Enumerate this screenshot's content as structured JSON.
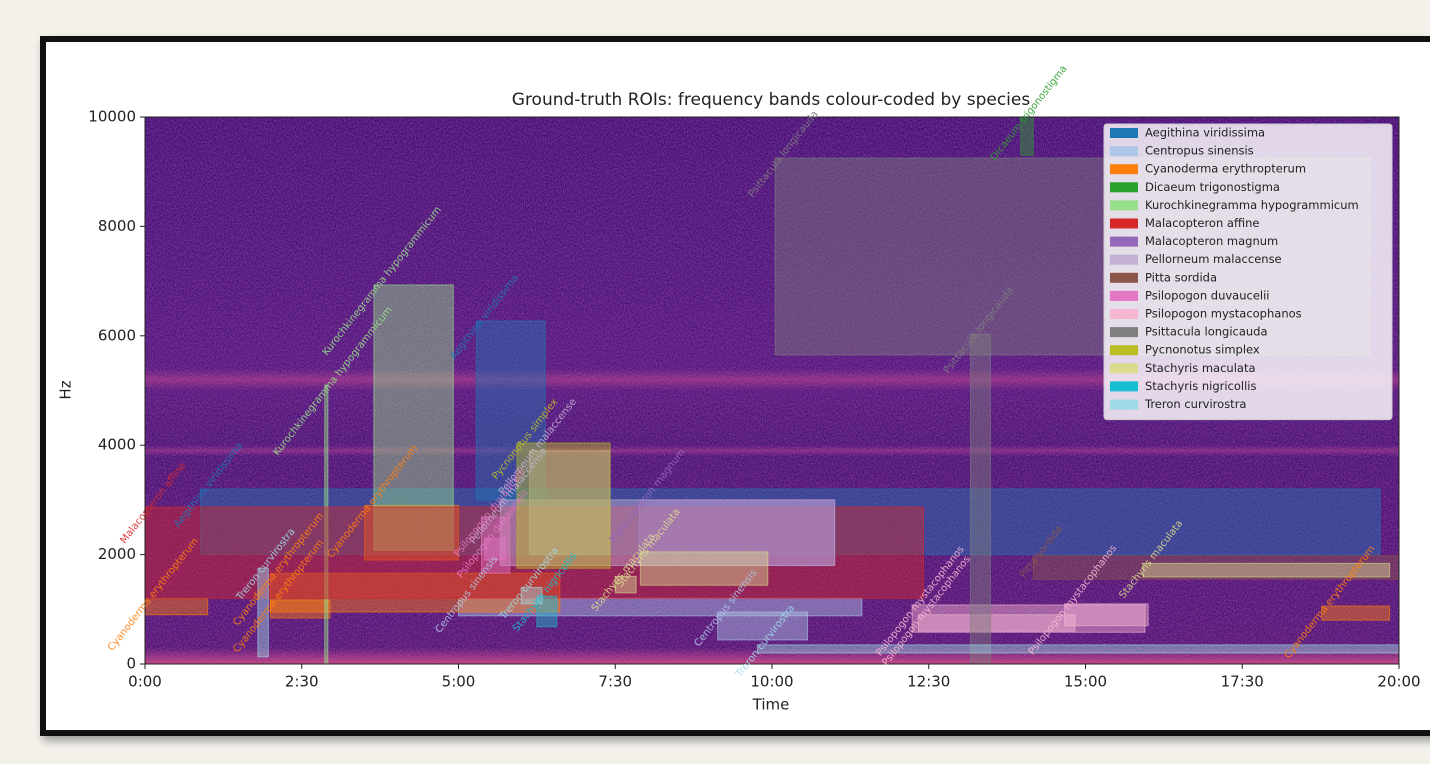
{
  "chart_data": {
    "type": "roi",
    "title": "Ground-truth ROIs: frequency bands colour-coded by species",
    "x_label": "Time",
    "y_label": "Hz",
    "xlim": [
      0,
      1200
    ],
    "ylim": [
      0,
      10000
    ],
    "xticks": [
      {
        "value": 0,
        "label": "0:00"
      },
      {
        "value": 150,
        "label": "2:30"
      },
      {
        "value": 300,
        "label": "5:00"
      },
      {
        "value": 450,
        "label": "7:30"
      },
      {
        "value": 600,
        "label": "10:00"
      },
      {
        "value": 750,
        "label": "12:30"
      },
      {
        "value": 900,
        "label": "15:00"
      },
      {
        "value": 1050,
        "label": "17:30"
      },
      {
        "value": 1200,
        "label": "20:00"
      }
    ],
    "yticks": [
      0,
      2000,
      4000,
      6000,
      8000,
      10000
    ],
    "legend": "upper right",
    "series": [
      {
        "name": "Aegithina viridissima",
        "color": "#1f77b4",
        "rois": [
          {
            "start": 53,
            "end": 1182,
            "low": 2000,
            "high": 3200
          },
          {
            "start": 317,
            "end": 383,
            "low": 3000,
            "high": 6270
          }
        ]
      },
      {
        "name": "Centropus sinensis",
        "color": "#aec7e8",
        "rois": [
          {
            "start": 300,
            "end": 686,
            "low": 880,
            "high": 1200
          },
          {
            "start": 548,
            "end": 634,
            "low": 440,
            "high": 950
          }
        ]
      },
      {
        "name": "Cyanoderma erythropterum",
        "color": "#ff7f0e",
        "rois": [
          {
            "start": 0,
            "end": 60,
            "low": 900,
            "high": 1200
          },
          {
            "start": 120,
            "end": 397,
            "low": 950,
            "high": 1660
          },
          {
            "start": 120,
            "end": 177,
            "low": 840,
            "high": 1170
          },
          {
            "start": 210,
            "end": 300,
            "low": 1900,
            "high": 2900
          },
          {
            "start": 1126,
            "end": 1191,
            "low": 800,
            "high": 1060
          }
        ]
      },
      {
        "name": "Dicaeum trigonostigma",
        "color": "#2ca02c",
        "rois": [
          {
            "start": 838,
            "end": 850,
            "low": 9300,
            "high": 10000
          }
        ]
      },
      {
        "name": "Kurochkinegramma hypogrammicum",
        "color": "#98df8a",
        "rois": [
          {
            "start": 219,
            "end": 295,
            "low": 2080,
            "high": 6930
          },
          {
            "start": 172,
            "end": 175,
            "low": 0,
            "high": 5100
          }
        ]
      },
      {
        "name": "Malacopteron affine",
        "color": "#d62728",
        "rois": [
          {
            "start": 0,
            "end": 745,
            "low": 1200,
            "high": 2870
          }
        ]
      },
      {
        "name": "Malacopteron magnum",
        "color": "#9467bd",
        "rois": [
          {
            "start": 473,
            "end": 660,
            "low": 1800,
            "high": 3000
          }
        ]
      },
      {
        "name": "Pellorneum malaccense",
        "color": "#c5b0d5",
        "rois": [
          {
            "start": 340,
            "end": 660,
            "low": 1800,
            "high": 3000
          },
          {
            "start": 368,
            "end": 445,
            "low": 2000,
            "high": 3900
          }
        ]
      },
      {
        "name": "Pitta sordida",
        "color": "#8c564b",
        "rois": [
          {
            "start": 850,
            "end": 1200,
            "low": 1550,
            "high": 1980
          }
        ]
      },
      {
        "name": "Psilopogon duvaucelii",
        "color": "#e377c2",
        "rois": [
          {
            "start": 322,
            "end": 349,
            "low": 1660,
            "high": 2690
          },
          {
            "start": 325,
            "end": 345,
            "low": 1900,
            "high": 2300
          }
        ]
      },
      {
        "name": "Psilopogon mystacophanos",
        "color": "#f7b6d2",
        "rois": [
          {
            "start": 734,
            "end": 957,
            "low": 580,
            "high": 1080
          },
          {
            "start": 740,
            "end": 890,
            "low": 600,
            "high": 900
          },
          {
            "start": 880,
            "end": 960,
            "low": 700,
            "high": 1100
          }
        ]
      },
      {
        "name": "Psittacula longicauda",
        "color": "#7f7f7f",
        "rois": [
          {
            "start": 603,
            "end": 1172,
            "low": 5650,
            "high": 9250
          },
          {
            "start": 790,
            "end": 809,
            "low": 0,
            "high": 6030
          }
        ]
      },
      {
        "name": "Pycnonotus simplex",
        "color": "#bcbd22",
        "rois": [
          {
            "start": 356,
            "end": 445,
            "low": 1750,
            "high": 4040
          }
        ]
      },
      {
        "name": "Stachyris maculata",
        "color": "#dbdb8d",
        "rois": [
          {
            "start": 474,
            "end": 596,
            "low": 1440,
            "high": 2050
          },
          {
            "start": 955,
            "end": 1191,
            "low": 1590,
            "high": 1840
          },
          {
            "start": 450,
            "end": 470,
            "low": 1300,
            "high": 1600
          }
        ]
      },
      {
        "name": "Stachyris nigricollis",
        "color": "#17becf",
        "rois": [
          {
            "start": 375,
            "end": 394,
            "low": 680,
            "high": 1240
          }
        ]
      },
      {
        "name": "Treron curvirostra",
        "color": "#9edae5",
        "rois": [
          {
            "start": 108,
            "end": 118,
            "low": 130,
            "high": 1750
          },
          {
            "start": 586,
            "end": 1200,
            "low": 200,
            "high": 350
          },
          {
            "start": 360,
            "end": 380,
            "low": 1100,
            "high": 1400
          }
        ]
      }
    ]
  }
}
